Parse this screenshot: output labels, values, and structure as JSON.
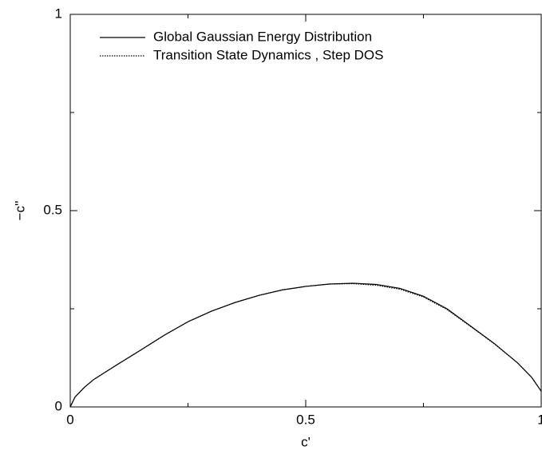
{
  "chart_data": {
    "type": "line",
    "xlabel": "c'",
    "ylabel": "−c''",
    "xlim": [
      0,
      1
    ],
    "ylim": [
      0,
      1
    ],
    "xticks": [
      0,
      0.5,
      1
    ],
    "yticks": [
      0,
      0.5,
      1
    ],
    "xminor_ticks": [
      0.25,
      0.75
    ],
    "yminor_ticks": [
      0.25,
      0.75
    ],
    "legend": "upper left",
    "series": [
      {
        "name": "Global Gaussian Energy Distribution",
        "color": "#000000",
        "dash": "solid",
        "x": [
          0,
          0.01,
          0.03,
          0.05,
          0.1,
          0.15,
          0.2,
          0.25,
          0.3,
          0.35,
          0.4,
          0.45,
          0.5,
          0.55,
          0.6,
          0.65,
          0.7,
          0.75,
          0.8,
          0.85,
          0.9,
          0.95,
          0.98,
          1.0
        ],
        "values": [
          0,
          0.025,
          0.05,
          0.07,
          0.108,
          0.145,
          0.183,
          0.217,
          0.244,
          0.266,
          0.284,
          0.298,
          0.307,
          0.313,
          0.315,
          0.312,
          0.302,
          0.282,
          0.25,
          0.206,
          0.162,
          0.112,
          0.075,
          0.04
        ]
      },
      {
        "name": "Transition State Dynamics , Step DOS",
        "color": "#000000",
        "dash": "dotted",
        "x": [
          0,
          0.01,
          0.03,
          0.05,
          0.1,
          0.15,
          0.2,
          0.25,
          0.3,
          0.35,
          0.4,
          0.45,
          0.5,
          0.55,
          0.6,
          0.65,
          0.7,
          0.75,
          0.8,
          0.85,
          0.9,
          0.95,
          0.98,
          1.0
        ],
        "values": [
          0,
          0.025,
          0.05,
          0.07,
          0.108,
          0.145,
          0.183,
          0.217,
          0.244,
          0.266,
          0.284,
          0.298,
          0.307,
          0.313,
          0.314,
          0.31,
          0.3,
          0.28,
          0.248,
          0.205,
          0.161,
          0.112,
          0.075,
          0.04
        ]
      }
    ]
  }
}
